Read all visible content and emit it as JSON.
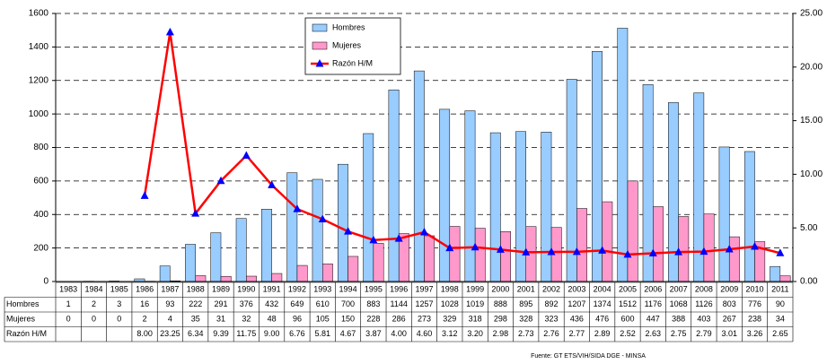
{
  "chart_data": {
    "type": "bar",
    "categories": [
      "1983",
      "1984",
      "1985",
      "1986",
      "1987",
      "1988",
      "1989",
      "1990",
      "1991",
      "1992",
      "1993",
      "1994",
      "1995",
      "1996",
      "1997",
      "1998",
      "1999",
      "2000",
      "2001",
      "2002",
      "2003",
      "2004",
      "2005",
      "2006",
      "2007",
      "2008",
      "2009",
      "2010",
      "2011"
    ],
    "series": [
      {
        "name": "Hombres",
        "color": "#99ccff",
        "values": [
          1,
          2,
          3,
          16,
          93,
          222,
          291,
          376,
          432,
          649,
          610,
          700,
          883,
          1144,
          1257,
          1028,
          1019,
          888,
          895,
          892,
          1207,
          1374,
          1512,
          1176,
          1068,
          1126,
          803,
          776,
          90
        ]
      },
      {
        "name": "Mujeres",
        "color": "#ff99cc",
        "values": [
          0,
          0,
          0,
          2,
          4,
          35,
          31,
          32,
          48,
          96,
          105,
          150,
          228,
          286,
          273,
          329,
          318,
          298,
          328,
          323,
          436,
          476,
          600,
          447,
          388,
          403,
          267,
          238,
          34
        ]
      },
      {
        "name": "Razón H/M",
        "type": "line",
        "axis": "y2",
        "color": "#ff0000",
        "marker_color": "#0000ff",
        "values": [
          null,
          null,
          null,
          8.0,
          23.25,
          6.34,
          9.39,
          11.75,
          9.0,
          6.76,
          5.81,
          4.67,
          3.87,
          4.0,
          4.6,
          3.12,
          3.2,
          2.98,
          2.73,
          2.76,
          2.77,
          2.89,
          2.52,
          2.63,
          2.75,
          2.79,
          3.01,
          3.26,
          2.65
        ],
        "value_labels": [
          null,
          null,
          null,
          "8.00",
          "23.25",
          "6.34",
          "9.39",
          "11.75",
          "9.00",
          "6.76",
          "5.81",
          "4.67",
          "3.87",
          "4.00",
          "4.60",
          "3.12",
          "3.20",
          "2.98",
          "2.73",
          "2.76",
          "2.77",
          "2.89",
          "2.52",
          "2.63",
          "2.75",
          "2.79",
          "3.01",
          "3.26",
          "2.65"
        ]
      }
    ],
    "ylim": [
      0,
      1600
    ],
    "yticks": [
      0,
      200,
      400,
      600,
      800,
      1000,
      1200,
      1400,
      1600
    ],
    "y2lim": [
      0,
      25
    ],
    "y2ticks": [
      {
        "value": 0,
        "label": "0.00"
      },
      {
        "value": 5,
        "label": "5.00"
      },
      {
        "value": 10,
        "label": "10.00"
      },
      {
        "value": 15,
        "label": "15.00"
      },
      {
        "value": 20,
        "label": "20.00"
      },
      {
        "value": 25,
        "label": "25.00"
      }
    ],
    "grid": true,
    "legend": "top-center",
    "source": "Fuente: GT ETS/VIH/SIDA DGE - MINSA"
  }
}
